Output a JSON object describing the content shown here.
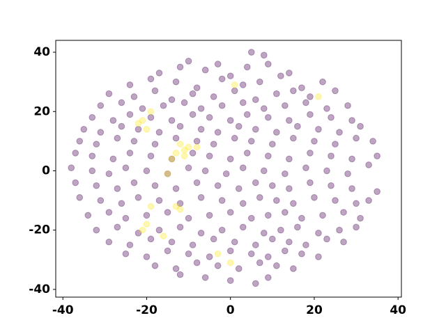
{
  "chart_data": {
    "type": "scatter",
    "xlim": [
      -41.7,
      40.8
    ],
    "ylim": [
      -42.6,
      44
    ],
    "xticks": [
      -40,
      -20,
      0,
      20,
      40
    ],
    "yticks": [
      -40,
      -20,
      0,
      20,
      40
    ],
    "alpha": 0.35,
    "series": [
      {
        "color": "#440154",
        "x": [
          -10,
          -3,
          5,
          8,
          -17,
          -12,
          -6,
          0,
          4,
          9,
          14,
          -24,
          -19,
          -13,
          -8,
          -2,
          3,
          7,
          12,
          17,
          22,
          -29,
          -23,
          -18,
          -14,
          -9,
          -4,
          1,
          6,
          11,
          15,
          19,
          25,
          -31,
          -26,
          -21,
          -16,
          -11,
          -7,
          -2,
          3,
          8,
          13,
          18,
          23,
          28,
          -33,
          -28,
          -24,
          -19,
          -14,
          -9,
          -5,
          0,
          4,
          9,
          14,
          19,
          24,
          29,
          -35,
          -31,
          -26,
          -22,
          -17,
          -12,
          -7,
          -3,
          2,
          6,
          11,
          16,
          21,
          26,
          31,
          -36,
          -32,
          -27,
          -23,
          -18,
          -13,
          -8,
          -4,
          1,
          5,
          10,
          15,
          20,
          25,
          30,
          34,
          -37,
          -33,
          -28,
          -24,
          -19,
          -14,
          -9,
          -5,
          0,
          4,
          9,
          14,
          19,
          24,
          29,
          35,
          -38,
          -33,
          -29,
          -25,
          -20,
          -15,
          -10,
          -6,
          -1,
          3,
          8,
          13,
          18,
          23,
          28,
          33,
          -37,
          -32,
          -27,
          -23,
          -18,
          -13,
          -8,
          -3,
          2,
          6,
          10,
          14,
          19,
          24,
          29,
          35,
          -36,
          -31,
          -26,
          -22,
          -17,
          -12,
          -7,
          -2,
          3,
          7,
          11,
          15,
          20,
          25,
          30,
          33,
          -34,
          -29,
          -25,
          -20,
          -15,
          -10,
          -5,
          0,
          5,
          9,
          13,
          17,
          22,
          27,
          31,
          -32,
          -27,
          -22,
          -17,
          -12,
          -7,
          -2,
          3,
          8,
          12,
          16,
          21,
          26,
          30,
          -29,
          -24,
          -19,
          -14,
          -9,
          -4,
          1,
          6,
          10,
          14,
          18,
          23,
          27,
          -25,
          -20,
          -15,
          -10,
          -5,
          0,
          5,
          9,
          13,
          17,
          21,
          -18,
          -13,
          -8,
          -3,
          2,
          7,
          11,
          15,
          -12,
          -6,
          0,
          6,
          9
        ],
        "values": [
          37,
          36,
          40,
          39,
          33,
          35,
          34,
          32,
          35,
          36,
          33,
          29,
          31,
          30,
          28,
          31,
          29,
          30,
          32,
          28,
          30,
          26,
          25,
          27,
          24,
          26,
          25,
          27,
          24,
          26,
          27,
          25,
          27,
          22,
          23,
          21,
          22,
          23,
          21,
          22,
          23,
          21,
          22,
          23,
          21,
          22,
          18,
          17,
          19,
          18,
          17,
          19,
          18,
          17,
          19,
          18,
          17,
          19,
          18,
          17,
          14,
          13,
          15,
          14,
          13,
          15,
          14,
          13,
          15,
          14,
          13,
          15,
          14,
          13,
          15,
          10,
          9,
          11,
          10,
          9,
          11,
          10,
          9,
          11,
          10,
          9,
          11,
          10,
          9,
          11,
          10,
          6,
          5,
          4,
          6,
          5,
          4,
          6,
          5,
          4,
          6,
          5,
          4,
          6,
          5,
          4,
          5,
          1,
          0,
          -1,
          1,
          0,
          -1,
          1,
          0,
          -1,
          1,
          0,
          -1,
          1,
          0,
          -1,
          2,
          -4,
          -5,
          -6,
          -4,
          -5,
          -6,
          -4,
          -5,
          -6,
          -4,
          -5,
          -6,
          -4,
          -5,
          -6,
          -7,
          -9,
          -10,
          -11,
          -9,
          -10,
          -11,
          -9,
          -10,
          -11,
          -9,
          -10,
          -11,
          -9,
          -10,
          -11,
          -10,
          -15,
          -14,
          -16,
          -15,
          -14,
          -16,
          -15,
          -14,
          -16,
          -15,
          -14,
          -16,
          -15,
          -14,
          -16,
          -20,
          -19,
          -21,
          -20,
          -19,
          -21,
          -20,
          -19,
          -21,
          -20,
          -19,
          -21,
          -20,
          -19,
          -24,
          -25,
          -23,
          -24,
          -25,
          -23,
          -24,
          -25,
          -23,
          -24,
          -25,
          -23,
          -24,
          -28,
          -29,
          -27,
          -28,
          -29,
          -27,
          -28,
          -29,
          -27,
          -28,
          -29,
          -32,
          -33,
          -31,
          -32,
          -33,
          -31,
          -32,
          -33,
          -35,
          -36,
          -37,
          -38,
          -36
        ]
      },
      {
        "color": "#fde725",
        "x": [
          -22,
          -21,
          -20,
          -19,
          -12,
          -11,
          -13,
          -10,
          -14,
          -8,
          -15,
          -12,
          -19,
          -20,
          -21,
          -13,
          -16,
          -3,
          0,
          1,
          21,
          -11
        ],
        "values": [
          16,
          17,
          14,
          20,
          9,
          7,
          6,
          8,
          4,
          8,
          -1,
          -13,
          -12,
          -18,
          -20,
          -12,
          -22,
          -28,
          -31,
          29,
          25,
          5
        ]
      }
    ]
  }
}
